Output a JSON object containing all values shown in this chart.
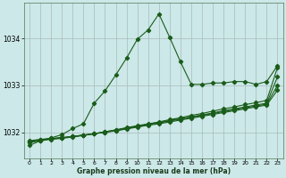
{
  "title": "Graphe pression niveau de la mer (hPa)",
  "background_color": "#cce8e8",
  "grid_color": "#aababa",
  "line_color": "#1a5c1a",
  "xlim": [
    -0.5,
    23.5
  ],
  "ylim": [
    1031.45,
    1034.75
  ],
  "yticks": [
    1032,
    1033,
    1034
  ],
  "xticks": [
    0,
    1,
    2,
    3,
    4,
    5,
    6,
    7,
    8,
    9,
    10,
    11,
    12,
    13,
    14,
    15,
    16,
    17,
    18,
    19,
    20,
    21,
    22,
    23
  ],
  "main_line": [
    1031.72,
    1031.82,
    1031.88,
    1031.95,
    1032.08,
    1032.18,
    1032.62,
    1032.88,
    1033.22,
    1033.58,
    1033.98,
    1034.18,
    1034.52,
    1034.02,
    1033.5,
    1033.02,
    1033.02,
    1033.05,
    1033.05,
    1033.08,
    1033.08,
    1033.02,
    1033.08,
    1033.42
  ],
  "line2": [
    1031.78,
    1031.82,
    1031.85,
    1031.87,
    1031.9,
    1031.93,
    1031.97,
    1032.01,
    1032.05,
    1032.1,
    1032.14,
    1032.18,
    1032.22,
    1032.27,
    1032.31,
    1032.36,
    1032.4,
    1032.45,
    1032.5,
    1032.54,
    1032.59,
    1032.63,
    1032.68,
    1033.38
  ],
  "line3": [
    1031.8,
    1031.83,
    1031.86,
    1031.88,
    1031.91,
    1031.94,
    1031.97,
    1032.01,
    1032.05,
    1032.09,
    1032.13,
    1032.17,
    1032.21,
    1032.25,
    1032.29,
    1032.33,
    1032.37,
    1032.41,
    1032.46,
    1032.5,
    1032.54,
    1032.58,
    1032.62,
    1033.18
  ],
  "line4": [
    1031.81,
    1031.84,
    1031.86,
    1031.88,
    1031.91,
    1031.94,
    1031.97,
    1032.0,
    1032.04,
    1032.08,
    1032.12,
    1032.16,
    1032.2,
    1032.24,
    1032.28,
    1032.32,
    1032.36,
    1032.4,
    1032.44,
    1032.48,
    1032.52,
    1032.56,
    1032.6,
    1033.0
  ],
  "line5": [
    1031.82,
    1031.85,
    1031.87,
    1031.89,
    1031.91,
    1031.94,
    1031.97,
    1032.0,
    1032.03,
    1032.07,
    1032.11,
    1032.15,
    1032.18,
    1032.22,
    1032.26,
    1032.3,
    1032.34,
    1032.38,
    1032.42,
    1032.46,
    1032.5,
    1032.54,
    1032.58,
    1032.9
  ]
}
